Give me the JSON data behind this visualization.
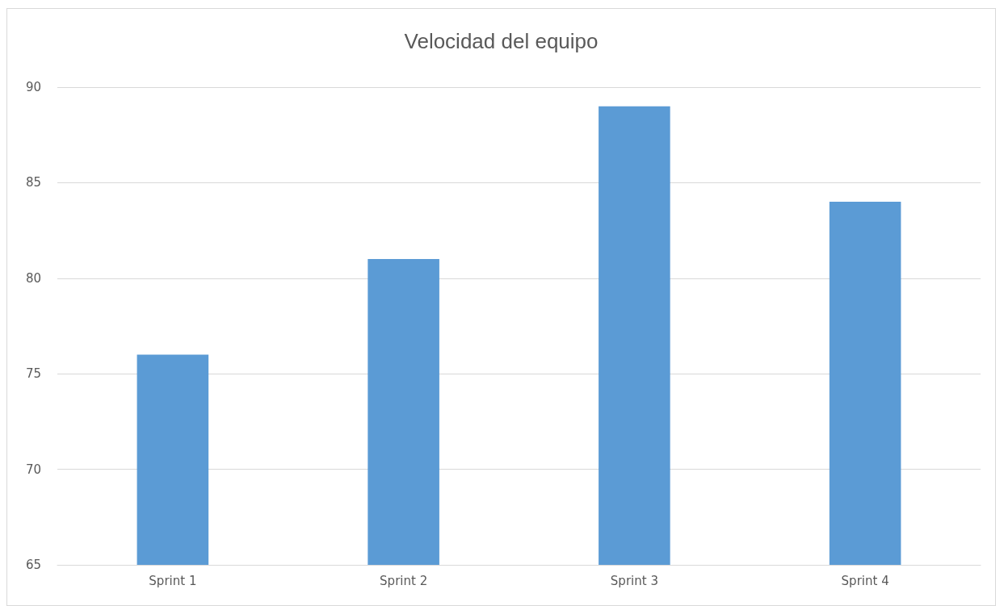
{
  "chart_data": {
    "type": "bar",
    "title": "Velocidad del equipo",
    "categories": [
      "Sprint 1",
      "Sprint 2",
      "Sprint 3",
      "Sprint 4"
    ],
    "values": [
      76,
      81,
      89,
      84
    ],
    "color": "#5b9bd5",
    "ylim": [
      65,
      90
    ],
    "yticks": [
      65,
      70,
      75,
      80,
      85,
      90
    ],
    "grid": "y"
  }
}
